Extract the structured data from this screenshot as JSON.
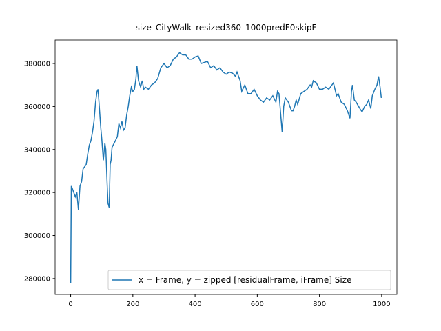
{
  "chart_data": {
    "type": "line",
    "title": "size_CityWalk_resized360_1000predF0skipF",
    "series": [
      {
        "name": "x = Frame, y =  zipped [residualFrame, iFrame] Size",
        "color": "#1f77b4",
        "x": [
          0,
          2,
          5,
          10,
          15,
          20,
          25,
          30,
          35,
          40,
          45,
          50,
          55,
          60,
          65,
          70,
          75,
          80,
          85,
          88,
          92,
          97,
          100,
          105,
          110,
          113,
          117,
          120,
          124,
          127,
          130,
          133,
          140,
          150,
          155,
          160,
          165,
          170,
          175,
          180,
          185,
          190,
          195,
          200,
          205,
          210,
          213,
          218,
          225,
          230,
          235,
          240,
          250,
          260,
          270,
          280,
          290,
          300,
          310,
          320,
          330,
          340,
          350,
          360,
          370,
          380,
          390,
          400,
          410,
          420,
          440,
          450,
          460,
          470,
          480,
          490,
          500,
          510,
          520,
          530,
          535,
          545,
          550,
          560,
          570,
          580,
          590,
          600,
          610,
          620,
          630,
          640,
          650,
          660,
          665,
          670,
          675,
          680,
          685,
          690,
          700,
          710,
          715,
          720,
          725,
          730,
          740,
          750,
          760,
          770,
          775,
          780,
          790,
          800,
          810,
          820,
          830,
          840,
          845,
          855,
          860,
          870,
          880,
          890,
          898,
          903,
          906,
          912,
          918,
          922,
          930,
          937,
          945,
          952,
          958,
          965,
          970,
          978,
          985,
          990,
          995,
          999
        ],
        "values": [
          278000,
          323000,
          322000,
          320000,
          318000,
          320000,
          312000,
          323000,
          325000,
          331000,
          332000,
          333000,
          338000,
          342000,
          344000,
          348000,
          353000,
          362000,
          367000,
          368000,
          360000,
          350000,
          345000,
          335000,
          343000,
          340000,
          325000,
          315000,
          313000,
          333000,
          335000,
          341000,
          343000,
          346000,
          352000,
          350000,
          353000,
          349000,
          350000,
          356000,
          360000,
          365000,
          369000,
          367000,
          368000,
          373000,
          379000,
          372000,
          369000,
          372000,
          368000,
          369000,
          368000,
          370000,
          371000,
          373000,
          378000,
          380000,
          378000,
          379000,
          382000,
          383000,
          385000,
          384000,
          384000,
          382000,
          382000,
          383000,
          383500,
          380000,
          381000,
          378000,
          379000,
          377000,
          378000,
          376000,
          375000,
          376000,
          375500,
          374000,
          376000,
          372000,
          367000,
          370000,
          366000,
          366000,
          368000,
          365000,
          363000,
          362000,
          364000,
          363000,
          365000,
          362000,
          367000,
          366000,
          357000,
          348000,
          360000,
          364000,
          362000,
          358000,
          358000,
          360000,
          363000,
          361000,
          366000,
          367000,
          368000,
          370000,
          369000,
          372000,
          371000,
          368000,
          368000,
          369000,
          368000,
          370000,
          371000,
          365000,
          366000,
          362000,
          361000,
          358000,
          354500,
          367000,
          370000,
          363000,
          362000,
          361000,
          359000,
          357500,
          360000,
          361000,
          363000,
          359000,
          365000,
          368000,
          370000,
          374000,
          369000,
          364000
        ]
      }
    ],
    "xlim": [
      -50,
      1049
    ],
    "xticks": [
      0,
      200,
      400,
      600,
      800,
      1000
    ],
    "ylim": [
      272600,
      390900
    ],
    "yticks": [
      280000,
      300000,
      320000,
      340000,
      360000,
      380000
    ],
    "legend": "lower right"
  }
}
